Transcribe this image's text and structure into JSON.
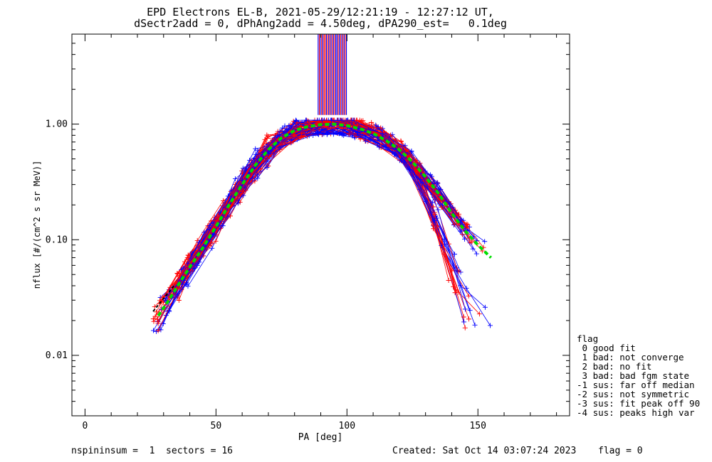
{
  "chart_data": {
    "type": "line",
    "title_line1": "EPD Electrons EL-B, 2021-05-29/12:21:19 - 12:27:12 UT,",
    "title_line2": "dSectr2add = 0, dPhAng2add = 4.50deg, dPA290_est=   0.1deg",
    "xlabel": "PA [deg]",
    "ylabel": "nflux [#/(cm^2 s sr MeV)]",
    "xlim": [
      -5,
      185
    ],
    "ylim": [
      0.003,
      6.0
    ],
    "log_y": true,
    "x_ticks": [
      0,
      50,
      100,
      150
    ],
    "x_tick_labels": [
      "0",
      "50",
      "100",
      "150"
    ],
    "y_ticks": [
      0.01,
      0.1,
      1.0
    ],
    "y_tick_labels": [
      "0.01",
      "0.10",
      "1.00"
    ],
    "colors": {
      "red": "#ff0000",
      "blue": "#0000ff",
      "fit": "#00dd00",
      "black": "#000000"
    },
    "fit_curve": {
      "color": "#00dd00",
      "x": [
        28,
        32,
        36,
        40,
        45,
        50,
        55,
        60,
        65,
        70,
        75,
        80,
        85,
        90,
        95,
        100,
        105,
        110,
        115,
        120,
        125,
        130,
        135,
        140,
        145,
        150,
        155
      ],
      "y": [
        0.022,
        0.03,
        0.042,
        0.058,
        0.085,
        0.13,
        0.2,
        0.3,
        0.44,
        0.6,
        0.76,
        0.88,
        0.95,
        0.99,
        1.0,
        0.97,
        0.91,
        0.83,
        0.72,
        0.6,
        0.47,
        0.35,
        0.25,
        0.17,
        0.12,
        0.09,
        0.07
      ]
    },
    "spikes": {
      "x_min": 89,
      "x_max": 100,
      "y_min": 1.2,
      "y_max": 6.0
    }
  },
  "footer": {
    "left": "nspininsum =  1  sectors = 16",
    "created": "Created: Sat Oct 14 03:07:24 2023",
    "flag_value": "flag = 0"
  },
  "flag_legend": {
    "title": "flag",
    "items": [
      " 0 good fit",
      " 1 bad: not converge",
      " 2 bad: no fit",
      " 3 bad: bad fgm state",
      "-1 sus: far off median",
      "-2 sus: not symmetric",
      "-3 sus: fit peak off 90",
      "-4 sus: peaks high var"
    ]
  }
}
